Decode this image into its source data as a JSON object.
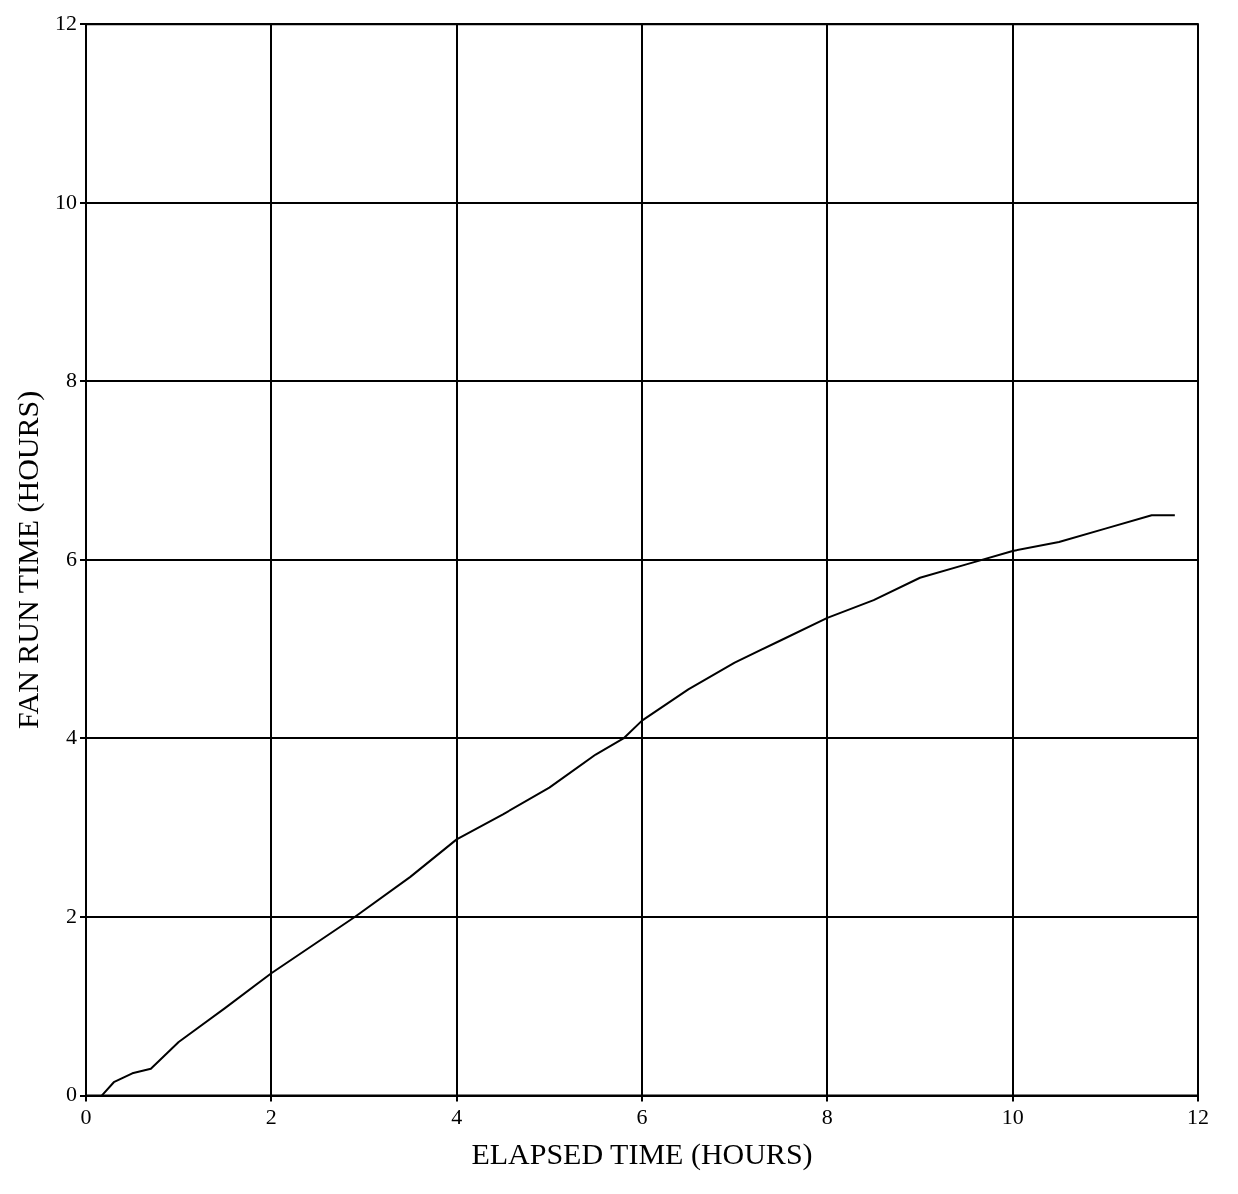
{
  "chart_data": {
    "type": "line",
    "xlabel": "ELAPSED TIME (HOURS)",
    "ylabel": "FAN RUN TIME (HOURS)",
    "series": [
      {
        "color": "#000000",
        "x": [
          0.17,
          0.3,
          0.5,
          0.7,
          1,
          1.5,
          2,
          2.5,
          2.9,
          3.5,
          4,
          4.5,
          5,
          5.5,
          5.8,
          6,
          6.5,
          7,
          7.5,
          8,
          8.5,
          9,
          9.5,
          10,
          10.5,
          11,
          11.5,
          11.75
        ],
        "values": [
          0,
          0.15,
          0.25,
          0.3,
          0.6,
          0.98,
          1.37,
          1.72,
          2.0,
          2.45,
          2.87,
          3.15,
          3.45,
          3.82,
          4.0,
          4.2,
          4.55,
          4.85,
          5.1,
          5.35,
          5.55,
          5.8,
          5.95,
          6.1,
          6.2,
          6.35,
          6.5,
          6.5
        ]
      }
    ],
    "xlim": [
      0,
      12
    ],
    "ylim": [
      0,
      12
    ],
    "xticks": [
      0,
      2,
      4,
      6,
      8,
      10,
      12
    ],
    "yticks": [
      0,
      2,
      4,
      6,
      8,
      10,
      12
    ],
    "grid": true,
    "legend": false,
    "marker": "none",
    "line_style": "solid"
  }
}
